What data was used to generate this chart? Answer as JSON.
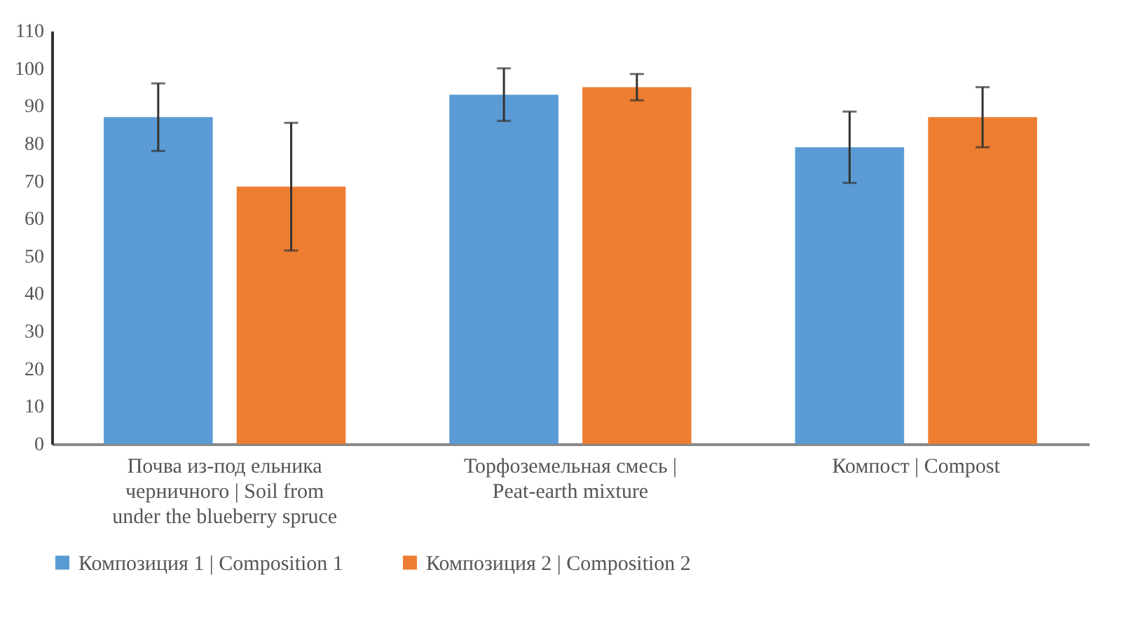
{
  "chart_data": {
    "type": "bar",
    "categories": [
      "Почва из-под ельника черничного | Soil from under the blueberry spruce",
      "Торфоземельная смесь | Peat-earth mixture",
      "Компост | Compost"
    ],
    "series": [
      {
        "name": "Композиция 1 | Composition 1",
        "color": "#5b9bd5",
        "values": [
          87,
          93,
          79
        ],
        "errors": [
          9,
          7,
          9.5
        ]
      },
      {
        "name": "Композиция 2 | Composition 2",
        "color": "#ed7d31",
        "values": [
          68.5,
          95,
          87
        ],
        "errors": [
          17,
          3.5,
          8
        ]
      }
    ],
    "ylim": [
      0,
      110
    ],
    "yticks": [
      0,
      10,
      20,
      30,
      40,
      50,
      60,
      70,
      80,
      90,
      100,
      110
    ],
    "grid": false,
    "legend": "bottom"
  }
}
